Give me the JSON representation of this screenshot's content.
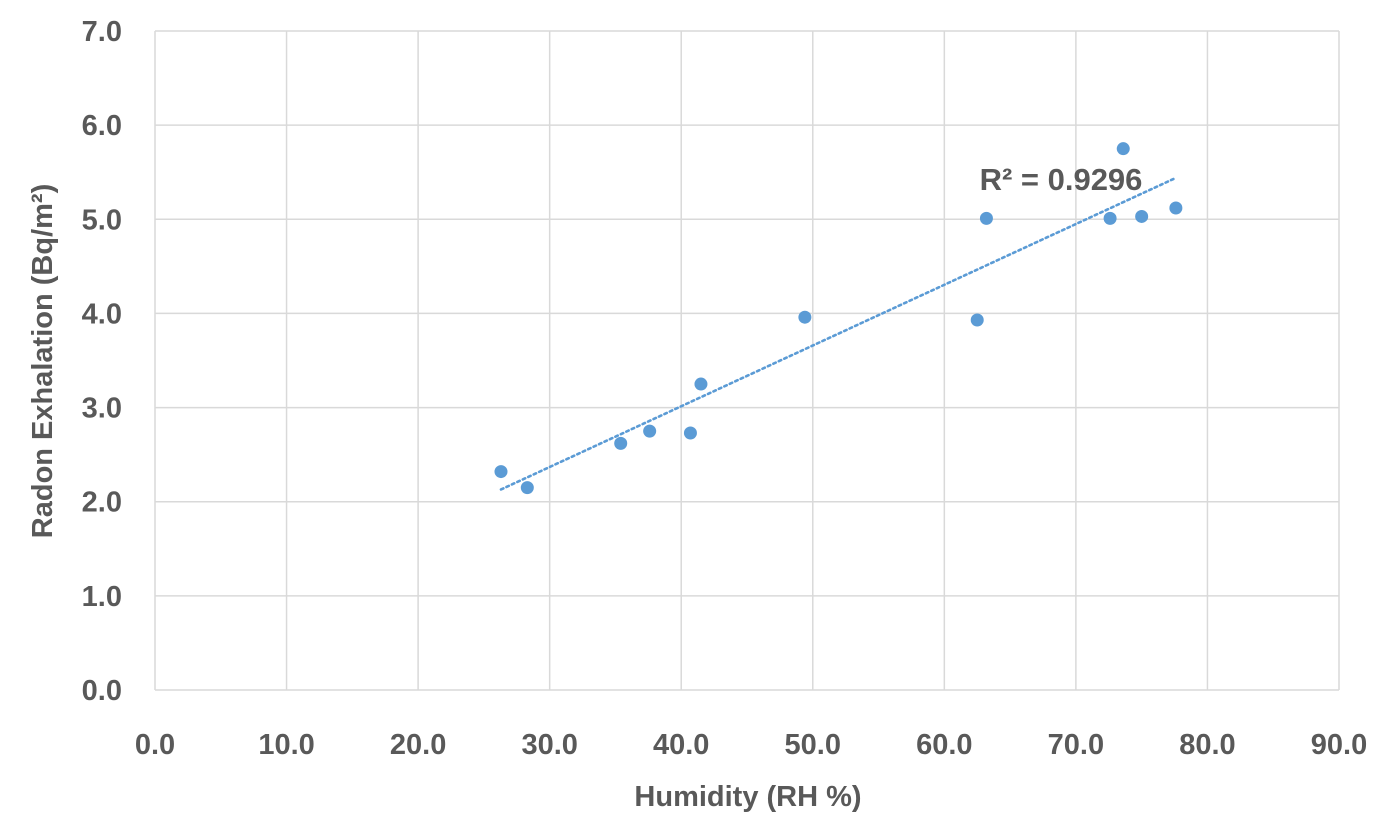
{
  "chart_data": {
    "type": "scatter",
    "xlabel": "Humidity (RH %)",
    "ylabel": "Radon Exhalation (Bq/m²)",
    "xlim": [
      0,
      90
    ],
    "ylim": [
      0,
      7
    ],
    "x_ticks": [
      "0.0",
      "10.0",
      "20.0",
      "30.0",
      "40.0",
      "50.0",
      "60.0",
      "70.0",
      "80.0",
      "90.0"
    ],
    "y_ticks": [
      "0.0",
      "1.0",
      "2.0",
      "3.0",
      "4.0",
      "5.0",
      "6.0",
      "7.0"
    ],
    "grid": true,
    "series": [
      {
        "color": "#5b9bd5",
        "points": [
          {
            "x": 26.3,
            "y": 2.32
          },
          {
            "x": 28.3,
            "y": 2.15
          },
          {
            "x": 35.4,
            "y": 2.62
          },
          {
            "x": 37.6,
            "y": 2.75
          },
          {
            "x": 40.7,
            "y": 2.73
          },
          {
            "x": 41.5,
            "y": 3.25
          },
          {
            "x": 49.4,
            "y": 3.96
          },
          {
            "x": 62.5,
            "y": 3.93
          },
          {
            "x": 63.2,
            "y": 5.01
          },
          {
            "x": 72.6,
            "y": 5.01
          },
          {
            "x": 73.6,
            "y": 5.75
          },
          {
            "x": 75.0,
            "y": 5.03
          },
          {
            "x": 77.6,
            "y": 5.12
          }
        ]
      }
    ],
    "trendline": {
      "type": "linear",
      "style": "dotted",
      "color": "#5b9bd5",
      "x_start": 26.3,
      "y_start": 2.13,
      "x_end": 77.6,
      "y_end": 5.44,
      "annotation": "R² = 0.9296"
    }
  }
}
